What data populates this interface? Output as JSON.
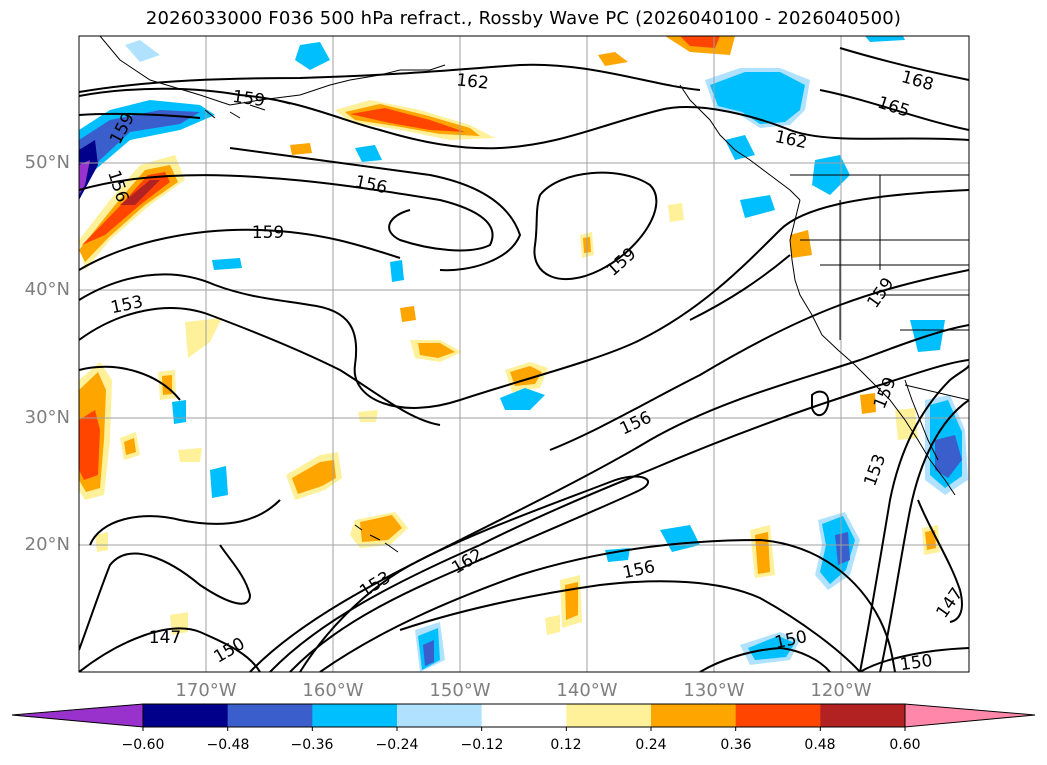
{
  "title": "2026033000 F036 500 hPa refract., Rossby Wave PC (2026040100 - 2026040500)",
  "map": {
    "lat_labels": [
      "50°N",
      "40°N",
      "30°N",
      "20°N"
    ],
    "lon_labels": [
      "170°W",
      "160°W",
      "150°W",
      "140°W",
      "130°W",
      "120°W"
    ],
    "contour_labels": [
      "162",
      "168",
      "165",
      "159",
      "159",
      "162",
      "156",
      "156",
      "159",
      "159",
      "153",
      "159",
      "159",
      "156",
      "153",
      "162",
      "153",
      "156",
      "147",
      "150",
      "150",
      "150",
      "147"
    ]
  },
  "colorbar": {
    "colors": [
      "#9932cc",
      "#00008b",
      "#3a5fcd",
      "#00bfff",
      "#b0e2ff",
      "#ffffff",
      "#fff09a",
      "#ffa500",
      "#ff4500",
      "#b22222",
      "#ff88aa"
    ],
    "labels": [
      "−0.60",
      "−0.48",
      "−0.36",
      "−0.24",
      "−0.12",
      "0.12",
      "0.24",
      "0.36",
      "0.48",
      "0.60"
    ]
  }
}
